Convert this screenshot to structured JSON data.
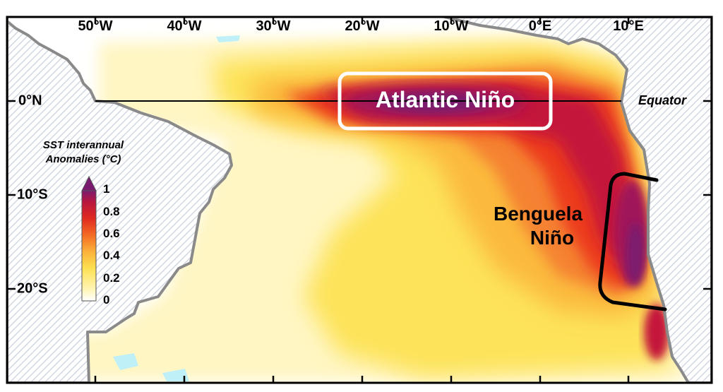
{
  "axes": {
    "lon_labels": [
      "50°W",
      "40°W",
      "30°W",
      "20°W",
      "10°W",
      "0°E",
      "10°E"
    ],
    "lat_labels": [
      "0°N",
      "10°S",
      "20°S"
    ]
  },
  "equator_label": "Equator",
  "regions": {
    "atlantic_nino": "Atlantic Niño",
    "benguela_line1": "Benguela",
    "benguela_line2": "Niño"
  },
  "colorbar": {
    "title_line1": "SST interannual",
    "title_line2": "Anomalies (°C)",
    "ticks": [
      "1",
      "0.8",
      "0.6",
      "0.4",
      "0.2",
      "0"
    ],
    "levels": [
      0,
      0.1,
      0.2,
      0.3,
      0.4,
      0.5,
      0.6,
      0.7,
      0.8,
      0.9,
      1.0
    ],
    "colors": [
      "#ffffff",
      "#fff5b8",
      "#fde050",
      "#fbbb3e",
      "#f89030",
      "#f46a24",
      "#ec3b1d",
      "#dc1f25",
      "#c4163a",
      "#a0175a",
      "#7a1a6e"
    ]
  },
  "colors": {
    "land_hatch": "#c9d0dc",
    "coastline": "#8a8a8a",
    "atlantic_box": "#ffffff",
    "benguela_box": "#000000",
    "negative_anomaly": "#bff0f8"
  }
}
